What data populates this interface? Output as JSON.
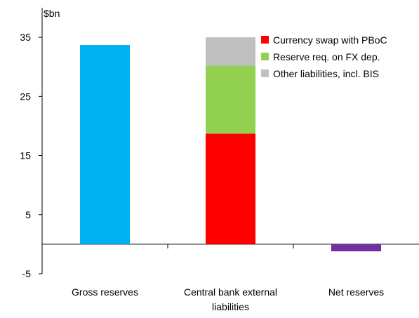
{
  "chart_data": {
    "type": "bar",
    "stacked": true,
    "unit_label": "$bn",
    "categories": [
      "Gross reserves",
      [
        "Central bank external",
        "liabilities"
      ],
      "Net reserves"
    ],
    "ylim": [
      -5,
      40
    ],
    "yticks": [
      35,
      25,
      15,
      5,
      -5
    ],
    "grid": false,
    "legend_position": "top-right",
    "series": [
      {
        "key": "gross",
        "values": [
          33.7,
          0,
          0
        ],
        "color": "#00b0f0"
      },
      {
        "key": "net",
        "values": [
          0,
          0,
          -1.2
        ],
        "color": "#7030a0"
      },
      {
        "name": "Currency swap with PBoC",
        "values": [
          0,
          18.7,
          0
        ],
        "color": "#ff0000"
      },
      {
        "name": "Reserve req. on FX dep.",
        "values": [
          0,
          11.5,
          0
        ],
        "color": "#92d050"
      },
      {
        "name": "Other liabilities, incl. BIS",
        "values": [
          0,
          4.8,
          0
        ],
        "color": "#c0c0c0"
      }
    ]
  }
}
